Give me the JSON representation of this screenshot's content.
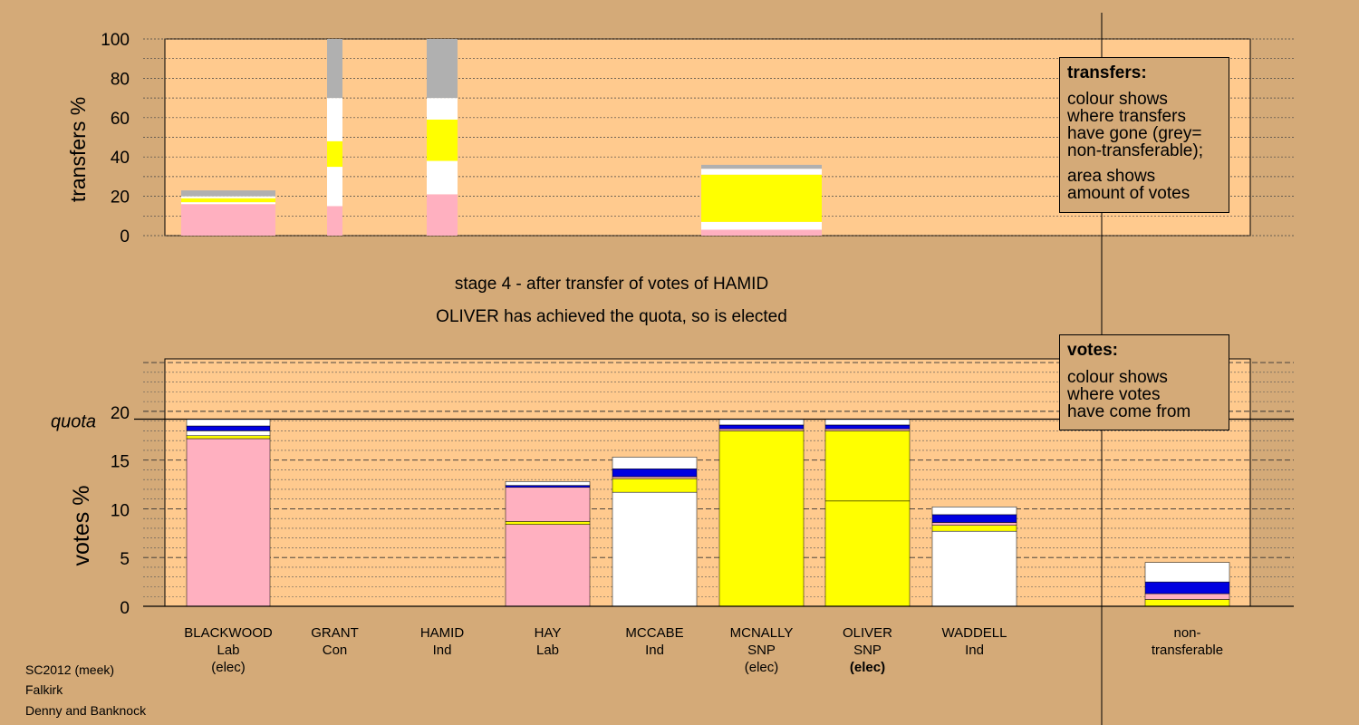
{
  "colors": {
    "background": "#d4aa78",
    "plot_bg": "#ffca8e",
    "Lab": "#ffb0c0",
    "SNP": "#ffff00",
    "Ind": "#ffffff",
    "Con": "#0000e0",
    "nontransferable": "#b0b0b0"
  },
  "stage": {
    "line1": "stage 4 - after transfer of votes of HAMID",
    "line2": "OLIVER has achieved the quota, so is elected"
  },
  "meta": {
    "line1": "SC2012 (meek)",
    "line2": "Falkirk",
    "line3": "Denny and Banknock"
  },
  "legend_transfers": {
    "title": "transfers:",
    "lines": [
      "colour shows",
      "where transfers",
      "have gone (grey=",
      "non-transferable);"
    ],
    "lines2": [
      "area shows",
      "amount of votes"
    ]
  },
  "legend_votes": {
    "title": "votes:",
    "lines": [
      "colour shows",
      "where votes",
      "have come from"
    ]
  },
  "chart_data": [
    {
      "type": "bar",
      "title": "",
      "ylabel": "transfers %",
      "ylim": [
        0,
        100
      ],
      "yticks": [
        0,
        20,
        40,
        60,
        80,
        100
      ],
      "bars": [
        {
          "candidate": "BLACKWOOD",
          "segments": [
            {
              "value": 16,
              "color": "Lab"
            },
            {
              "value": 1,
              "color": "Ind"
            },
            {
              "value": 2,
              "color": "SNP"
            },
            {
              "value": 1,
              "color": "Ind"
            },
            {
              "value": 3,
              "color": "nontransferable"
            }
          ]
        },
        {
          "candidate": "GRANT",
          "segments": [
            {
              "value": 15,
              "color": "Lab"
            },
            {
              "value": 20,
              "color": "Ind"
            },
            {
              "value": 13,
              "color": "SNP"
            },
            {
              "value": 22,
              "color": "Ind"
            },
            {
              "value": 30,
              "color": "nontransferable"
            }
          ]
        },
        {
          "candidate": "HAMID",
          "segments": [
            {
              "value": 21,
              "color": "Lab"
            },
            {
              "value": 17,
              "color": "Ind"
            },
            {
              "value": 21,
              "color": "SNP"
            },
            {
              "value": 11,
              "color": "Ind"
            },
            {
              "value": 30,
              "color": "nontransferable"
            }
          ]
        },
        {
          "candidate": "MCNALLY",
          "segments": [
            {
              "value": 3,
              "color": "Lab"
            },
            {
              "value": 4,
              "color": "Ind"
            },
            {
              "value": 24,
              "color": "SNP"
            },
            {
              "value": 3,
              "color": "Ind"
            },
            {
              "value": 2,
              "color": "nontransferable"
            }
          ]
        }
      ]
    },
    {
      "type": "bar",
      "title": "",
      "ylabel": "votes %",
      "ylim": [
        0,
        25
      ],
      "yticks": [
        0,
        5,
        10,
        15,
        20
      ],
      "quota": 19.2,
      "quota_label": "quota",
      "categories": [
        "BLACKWOOD",
        "GRANT",
        "HAMID",
        "HAY",
        "MCCABE",
        "MCNALLY",
        "OLIVER",
        "WADDELL",
        "non-transferable"
      ],
      "labels": [
        [
          "BLACKWOOD",
          "Lab",
          "(elec)"
        ],
        [
          "GRANT",
          "Con",
          ""
        ],
        [
          "HAMID",
          "Ind",
          ""
        ],
        [
          "HAY",
          "Lab",
          ""
        ],
        [
          "MCCABE",
          "Ind",
          ""
        ],
        [
          "MCNALLY",
          "SNP",
          "(elec)"
        ],
        [
          "OLIVER",
          "SNP",
          "(elec)"
        ],
        [
          "WADDELL",
          "Ind",
          ""
        ],
        [
          "non-",
          "transferable",
          ""
        ]
      ],
      "bars": [
        {
          "candidate": "BLACKWOOD",
          "segments": [
            {
              "value": 17.2,
              "color": "Lab"
            },
            {
              "value": 0.3,
              "color": "SNP"
            },
            {
              "value": 0.5,
              "color": "Ind"
            },
            {
              "value": 0.5,
              "color": "Con"
            },
            {
              "value": 0.7,
              "color": "Ind"
            }
          ]
        },
        {
          "candidate": "GRANT",
          "segments": []
        },
        {
          "candidate": "HAMID",
          "segments": []
        },
        {
          "candidate": "HAY",
          "segments": [
            {
              "value": 8.4,
              "color": "Lab"
            },
            {
              "value": 0.3,
              "color": "SNP"
            },
            {
              "value": 3.5,
              "color": "Lab"
            },
            {
              "value": 0.2,
              "color": "Con"
            },
            {
              "value": 0.4,
              "color": "Ind"
            }
          ]
        },
        {
          "candidate": "MCCABE",
          "segments": [
            {
              "value": 11.7,
              "color": "Ind"
            },
            {
              "value": 1.4,
              "color": "SNP"
            },
            {
              "value": 0.2,
              "color": "Lab"
            },
            {
              "value": 0.8,
              "color": "Con"
            },
            {
              "value": 1.2,
              "color": "Ind"
            }
          ]
        },
        {
          "candidate": "MCNALLY",
          "segments": [
            {
              "value": 18.0,
              "color": "SNP"
            },
            {
              "value": 0.2,
              "color": "Lab"
            },
            {
              "value": 0.4,
              "color": "Con"
            },
            {
              "value": 0.6,
              "color": "Ind"
            }
          ]
        },
        {
          "candidate": "OLIVER",
          "segments": [
            {
              "value": 10.8,
              "color": "SNP"
            },
            {
              "value": 7.2,
              "color": "SNP"
            },
            {
              "value": 0.2,
              "color": "Lab"
            },
            {
              "value": 0.4,
              "color": "Con"
            },
            {
              "value": 0.6,
              "color": "Ind"
            }
          ]
        },
        {
          "candidate": "WADDELL",
          "segments": [
            {
              "value": 7.7,
              "color": "Ind"
            },
            {
              "value": 0.6,
              "color": "SNP"
            },
            {
              "value": 0.3,
              "color": "Lab"
            },
            {
              "value": 0.8,
              "color": "Con"
            },
            {
              "value": 0.8,
              "color": "Ind"
            }
          ]
        },
        {
          "candidate": "non-transferable",
          "segments": [
            {
              "value": 0.7,
              "color": "SNP"
            },
            {
              "value": 0.6,
              "color": "Lab"
            },
            {
              "value": 1.2,
              "color": "Con"
            },
            {
              "value": 2.0,
              "color": "Ind"
            }
          ]
        }
      ]
    }
  ]
}
